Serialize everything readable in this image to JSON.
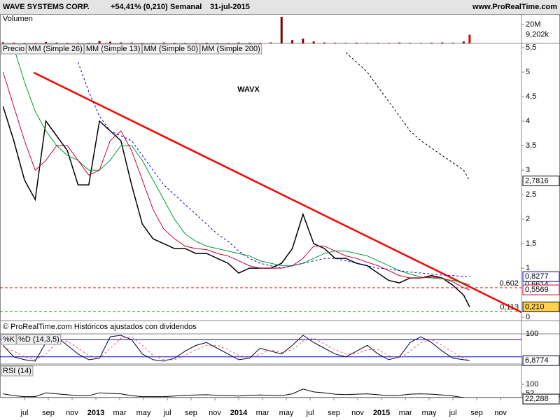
{
  "header": {
    "name": "WAVE SYSTEMS CORP.",
    "change": "+54,41% (0,210)",
    "period": "Semanal",
    "date": "31-jul-2015",
    "site": "www.ProRealTime.com",
    "footer_note": "© ProRealTime.com Históricos ajustados con dividendos"
  },
  "x_axis": {
    "x": [
      -1.8,
      -0.9,
      0,
      0.9,
      1.8,
      2.7,
      3.6,
      4.5,
      5.4,
      6.3,
      7.2,
      8.1,
      9,
      9.9,
      10.8,
      11.7,
      12.6,
      13.5,
      14.4,
      15.3,
      16.2,
      17.1,
      18,
      18.9,
      19.8,
      20.7,
      21.6,
      22.5,
      23.4,
      24.3,
      25.2,
      26.1,
      27,
      27.9,
      28.8,
      29.7,
      30.6,
      31.5,
      32.4,
      33.3,
      34.2,
      35.1,
      36,
      36.9,
      37.4
    ],
    "xlim": [
      -2.06,
      41.76
    ],
    "xticks": [
      {
        "value": 0,
        "label": "jul"
      },
      {
        "value": 2,
        "label": "sep"
      },
      {
        "value": 4,
        "label": "nov"
      },
      {
        "value": 6,
        "label": "2013"
      },
      {
        "value": 8,
        "label": "mar"
      },
      {
        "value": 10,
        "label": "may"
      },
      {
        "value": 12,
        "label": "jul"
      },
      {
        "value": 14,
        "label": "sep"
      },
      {
        "value": 16,
        "label": "nov"
      },
      {
        "value": 18,
        "label": "2014"
      },
      {
        "value": 20,
        "label": "mar"
      },
      {
        "value": 22,
        "label": "may"
      },
      {
        "value": 24,
        "label": "jul"
      },
      {
        "value": 26,
        "label": "sep"
      },
      {
        "value": 28,
        "label": "nov"
      },
      {
        "value": 30,
        "label": "2015"
      },
      {
        "value": 32,
        "label": "mar"
      },
      {
        "value": 34,
        "label": "may"
      },
      {
        "value": 36,
        "label": "jul"
      },
      {
        "value": 38,
        "label": "sep"
      },
      {
        "value": 40,
        "label": "nov"
      }
    ]
  },
  "chart_data": [
    {
      "type": "bar",
      "title": "Volumen",
      "color": "#800000",
      "highlight_color": "#e00000",
      "values": [
        1200000,
        800000,
        600000,
        500000,
        1500000,
        900000,
        700000,
        500000,
        600000,
        2500000,
        1800000,
        1000000,
        800000,
        600000,
        500000,
        900000,
        700000,
        600000,
        500000,
        800000,
        600000,
        500000,
        900000,
        700000,
        600000,
        1000000,
        28000000,
        3500000,
        5000000,
        2000000,
        1000000,
        700000,
        600000,
        800000,
        500000,
        600000,
        500000,
        900000,
        600000,
        500000,
        800000,
        1000000,
        700000,
        2000000,
        9202000
      ],
      "last_label": "9,202k",
      "ylim": [
        0,
        31000000
      ],
      "yticks": [
        {
          "value": 20000000,
          "label": "20M"
        }
      ]
    },
    {
      "type": "line",
      "legend": true,
      "annotation": "WAVX",
      "annotation_color": "#0000ff",
      "ylim": [
        -0.07,
        5.586
      ],
      "yticks": [
        0,
        1,
        {
          "value": 1.5,
          "label": "1,5"
        },
        2,
        {
          "value": 2.5,
          "label": "2,5"
        },
        3,
        {
          "value": 3.5,
          "label": "3,5"
        },
        4,
        {
          "value": 4.5,
          "label": "4,5"
        },
        5,
        {
          "value": 5.5,
          "label": "5,5"
        }
      ],
      "series": [
        {
          "name": "Precio",
          "color": "#000000",
          "label_fill": "#ffd24d",
          "last_label": "0,210",
          "values": [
            4.3,
            3.6,
            2.8,
            2.4,
            4.0,
            3.7,
            3.4,
            2.7,
            2.7,
            4.0,
            3.8,
            3.6,
            2.7,
            1.9,
            1.6,
            1.5,
            1.4,
            1.4,
            1.3,
            1.3,
            1.2,
            1.1,
            0.9,
            1.0,
            1.0,
            1.0,
            1.1,
            1.4,
            2.1,
            1.5,
            1.4,
            1.2,
            1.2,
            1.1,
            1.05,
            0.9,
            0.75,
            0.7,
            0.8,
            0.8,
            0.85,
            0.8,
            0.65,
            0.45,
            0.21
          ]
        },
        {
          "name": "MM (Simple 26)",
          "color": "#009933",
          "last_label": "0,6614",
          "values": [
            null,
            5.5,
            4.8,
            4.2,
            3.8,
            3.5,
            3.3,
            3.2,
            3.0,
            3.0,
            3.2,
            3.5,
            3.5,
            3.2,
            2.8,
            2.4,
            2.0,
            1.7,
            1.55,
            1.45,
            1.4,
            1.35,
            1.3,
            1.25,
            1.15,
            1.1,
            1.05,
            1.05,
            1.1,
            1.2,
            1.3,
            1.35,
            1.35,
            1.3,
            1.25,
            1.15,
            1.05,
            0.95,
            0.88,
            0.82,
            0.8,
            0.78,
            0.75,
            0.7,
            0.6614
          ]
        },
        {
          "name": "MM (Simple 13)",
          "color": "#cc0033",
          "last_label": "0,5569",
          "values": [
            5.0,
            4.3,
            3.6,
            3.0,
            3.2,
            3.5,
            3.5,
            3.2,
            2.9,
            3.0,
            3.6,
            3.8,
            3.4,
            2.8,
            2.2,
            1.8,
            1.6,
            1.45,
            1.4,
            1.38,
            1.3,
            1.25,
            1.15,
            1.05,
            1.0,
            1.0,
            1.0,
            1.05,
            1.2,
            1.45,
            1.45,
            1.35,
            1.25,
            1.2,
            1.12,
            1.05,
            0.95,
            0.85,
            0.8,
            0.8,
            0.82,
            0.8,
            0.72,
            0.6,
            0.5569
          ]
        },
        {
          "name": "MM (Simple 50)",
          "color": "#0000cc",
          "dash": true,
          "last_label": "0,8277",
          "values": [
            null,
            null,
            null,
            null,
            null,
            null,
            null,
            5.2,
            4.6,
            4.1,
            3.8,
            3.7,
            3.6,
            3.3,
            3.0,
            2.7,
            2.5,
            2.3,
            2.1,
            1.9,
            1.7,
            1.55,
            1.35,
            1.2,
            1.1,
            1.05,
            1.0,
            1.05,
            1.1,
            1.15,
            1.2,
            1.2,
            1.15,
            1.1,
            1.05,
            1.0,
            0.98,
            0.95,
            0.92,
            0.9,
            0.88,
            0.86,
            0.85,
            0.83,
            0.8277
          ]
        },
        {
          "name": "MM (Simple 200)",
          "color": "#000000",
          "dash": true,
          "last_label": "2,7816",
          "values": [
            null,
            null,
            null,
            null,
            null,
            null,
            null,
            null,
            null,
            null,
            null,
            null,
            null,
            null,
            null,
            null,
            null,
            null,
            null,
            null,
            null,
            null,
            null,
            null,
            null,
            null,
            null,
            null,
            null,
            null,
            null,
            null,
            5.4,
            5.2,
            5.0,
            4.7,
            4.4,
            4.1,
            3.8,
            3.6,
            3.45,
            3.3,
            3.15,
            3.0,
            2.7816
          ]
        }
      ],
      "hlines": [
        {
          "value": 0.602,
          "label": "0,602",
          "color": "#e00000"
        },
        {
          "value": 0.113,
          "label": "0,113",
          "color": "#009900"
        }
      ],
      "trendline": {
        "color": "#ff0000",
        "x": [
          0.78,
          41.76
        ],
        "y": [
          4.99,
          0.1
        ]
      }
    },
    {
      "type": "line",
      "legend": true,
      "ylim": [
        -5,
        100
      ],
      "yticks": [
        100
      ],
      "levels": [
        80,
        20
      ],
      "level_color": "#0000cc",
      "series": [
        {
          "name": "%K",
          "color": "#000033",
          "last_label": "6,8774",
          "values": [
            60,
            20,
            10,
            5,
            70,
            90,
            60,
            30,
            10,
            15,
            90,
            95,
            80,
            30,
            10,
            5,
            15,
            40,
            60,
            70,
            50,
            30,
            10,
            15,
            50,
            40,
            30,
            60,
            95,
            70,
            50,
            30,
            20,
            40,
            60,
            30,
            10,
            20,
            70,
            90,
            70,
            40,
            15,
            10,
            6.8774
          ]
        },
        {
          "name": "%D (14,3,5)",
          "color": "#e06060",
          "dash": true,
          "values": [
            55,
            40,
            20,
            10,
            30,
            70,
            75,
            50,
            25,
            15,
            50,
            85,
            90,
            60,
            25,
            10,
            10,
            25,
            45,
            60,
            60,
            45,
            25,
            15,
            30,
            45,
            35,
            45,
            75,
            85,
            65,
            45,
            30,
            30,
            45,
            45,
            25,
            15,
            40,
            70,
            80,
            60,
            35,
            15,
            9
          ]
        }
      ]
    },
    {
      "type": "line",
      "legend": true,
      "ylim": [
        30,
        200
      ],
      "yticks": [
        100,
        52
      ],
      "series": [
        {
          "name": "RSI (14)",
          "color": "#000000",
          "last_label": "22,288",
          "values": [
            50,
            40,
            35,
            35,
            55,
            50,
            45,
            40,
            40,
            55,
            52,
            50,
            40,
            35,
            35,
            35,
            38,
            42,
            44,
            45,
            42,
            40,
            38,
            42,
            44,
            42,
            40,
            50,
            75,
            60,
            55,
            48,
            46,
            48,
            50,
            45,
            40,
            42,
            48,
            50,
            48,
            44,
            38,
            30,
            22.288
          ]
        }
      ]
    }
  ]
}
